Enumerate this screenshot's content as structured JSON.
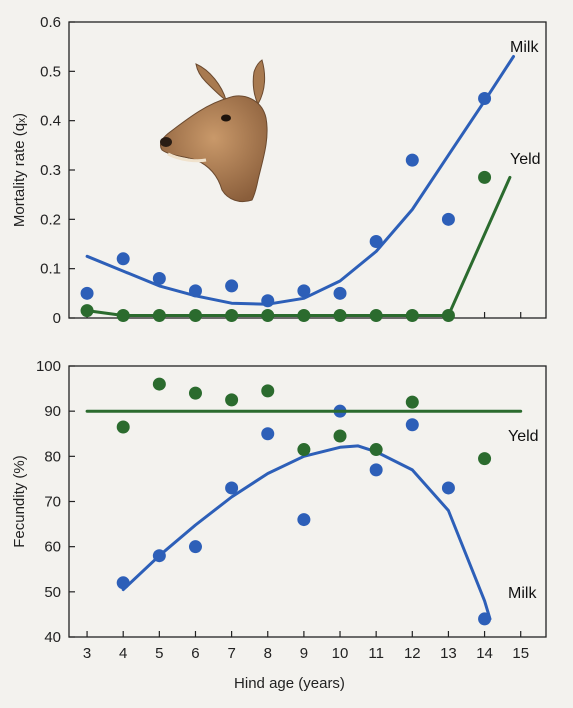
{
  "chart_data": [
    {
      "type": "scatter",
      "title": "",
      "xlabel": "Hind age (years)",
      "ylabel": "Mortality rate (qₓ)",
      "xlim": [
        2.5,
        15.7
      ],
      "ylim": [
        0,
        0.6
      ],
      "yticks": [
        "0",
        "0.1",
        "0.2",
        "0.3",
        "0.4",
        "0.5",
        "0.6"
      ],
      "grid": false,
      "series": [
        {
          "name": "Milk",
          "color": "#2d5fb8",
          "marker": "circle",
          "points": [
            [
              3,
              0.05
            ],
            [
              4,
              0.12
            ],
            [
              5,
              0.08
            ],
            [
              6,
              0.055
            ],
            [
              7,
              0.065
            ],
            [
              8,
              0.035
            ],
            [
              9,
              0.055
            ],
            [
              10,
              0.05
            ],
            [
              11,
              0.155
            ],
            [
              12,
              0.32
            ],
            [
              13,
              0.2
            ],
            [
              14,
              0.445
            ]
          ],
          "fit_curve": [
            [
              3,
              0.125
            ],
            [
              4,
              0.095
            ],
            [
              5,
              0.065
            ],
            [
              6,
              0.045
            ],
            [
              7,
              0.03
            ],
            [
              8,
              0.028
            ],
            [
              9,
              0.04
            ],
            [
              10,
              0.075
            ],
            [
              11,
              0.135
            ],
            [
              12,
              0.22
            ],
            [
              13,
              0.33
            ],
            [
              14,
              0.44
            ],
            [
              14.8,
              0.53
            ]
          ]
        },
        {
          "name": "Yeld",
          "color": "#2b6b2e",
          "marker": "circle",
          "points": [
            [
              3,
              0.015
            ],
            [
              4,
              0.005
            ],
            [
              5,
              0.005
            ],
            [
              6,
              0.005
            ],
            [
              7,
              0.005
            ],
            [
              8,
              0.005
            ],
            [
              9,
              0.005
            ],
            [
              10,
              0.005
            ],
            [
              11,
              0.005
            ],
            [
              12,
              0.005
            ],
            [
              13,
              0.005
            ],
            [
              14,
              0.285
            ]
          ],
          "fit_line": [
            [
              3,
              0.015
            ],
            [
              4,
              0.005
            ],
            [
              13,
              0.005
            ],
            [
              14.7,
              0.285
            ]
          ]
        }
      ]
    },
    {
      "type": "scatter",
      "title": "",
      "xlabel": "Hind age (years)",
      "ylabel": "Fecundity (%)",
      "xlim": [
        2.5,
        15.7
      ],
      "ylim": [
        40,
        100
      ],
      "yticks": [
        "40",
        "50",
        "60",
        "70",
        "80",
        "90",
        "100"
      ],
      "categories": [
        "3",
        "4",
        "5",
        "6",
        "7",
        "8",
        "9",
        "10",
        "11",
        "12",
        "13",
        "14",
        "15"
      ],
      "grid": false,
      "series": [
        {
          "name": "Milk",
          "color": "#2d5fb8",
          "marker": "circle",
          "points": [
            [
              4,
              52
            ],
            [
              5,
              58
            ],
            [
              6,
              60
            ],
            [
              7,
              73
            ],
            [
              8,
              85
            ],
            [
              9,
              66
            ],
            [
              10,
              90
            ],
            [
              11,
              77
            ],
            [
              12,
              87
            ],
            [
              13,
              73
            ],
            [
              14,
              44
            ]
          ],
          "fit_curve": [
            [
              4,
              50.5
            ],
            [
              5,
              58
            ],
            [
              6,
              64.8
            ],
            [
              7,
              71
            ],
            [
              8,
              76.2
            ],
            [
              9,
              80
            ],
            [
              10,
              82
            ],
            [
              10.5,
              82.3
            ],
            [
              11,
              81
            ],
            [
              12,
              77
            ],
            [
              13,
              68
            ],
            [
              14,
              48
            ],
            [
              14.15,
              44
            ]
          ]
        },
        {
          "name": "Yeld",
          "color": "#2b6b2e",
          "marker": "circle",
          "points": [
            [
              4,
              86.5
            ],
            [
              5,
              96
            ],
            [
              6,
              94
            ],
            [
              7,
              92.5
            ],
            [
              8,
              94.5
            ],
            [
              9,
              81.5
            ],
            [
              10,
              84.5
            ],
            [
              11,
              81.5
            ],
            [
              12,
              92
            ],
            [
              14,
              79.5
            ]
          ],
          "fit_line": [
            [
              3,
              90
            ],
            [
              15,
              90
            ]
          ]
        }
      ]
    }
  ]
}
